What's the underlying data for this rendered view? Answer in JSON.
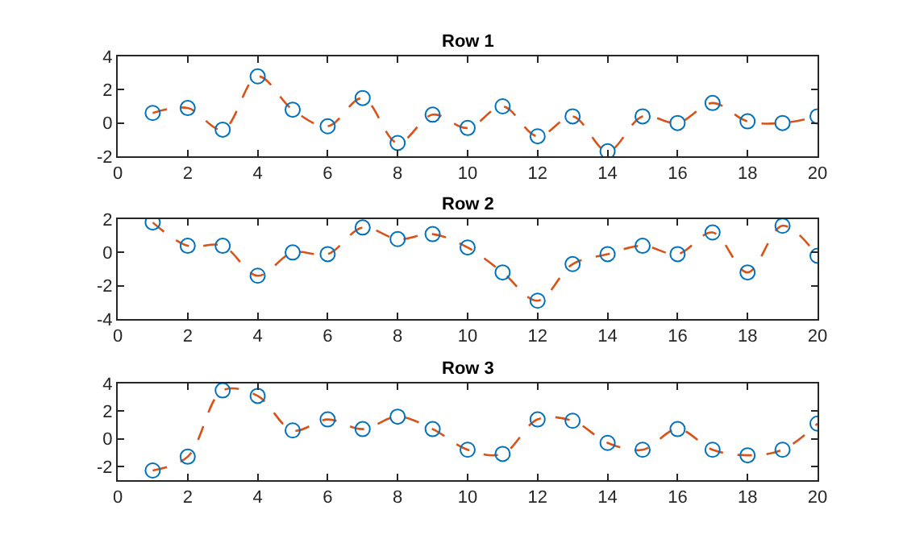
{
  "chart_data": [
    {
      "type": "scatter",
      "title": "Row 1",
      "x": [
        1,
        2,
        3,
        4,
        5,
        6,
        7,
        8,
        9,
        10,
        11,
        12,
        13,
        14,
        15,
        16,
        17,
        18,
        19,
        20
      ],
      "xlim": [
        0,
        20
      ],
      "xticks": [
        0,
        2,
        4,
        6,
        8,
        10,
        12,
        14,
        16,
        18,
        20
      ],
      "ylim": [
        -2,
        4
      ],
      "yticks": [
        -2,
        0,
        2,
        4
      ],
      "series": [
        {
          "type": "line",
          "color": "#d95319",
          "line_style": "dashed",
          "marker": "none",
          "values": [
            0.6,
            0.9,
            -0.4,
            2.8,
            0.8,
            -0.2,
            1.5,
            -1.2,
            0.5,
            -0.3,
            1.0,
            -0.8,
            0.4,
            -1.7,
            0.4,
            0.0,
            1.2,
            0.1,
            0.0,
            0.4
          ]
        },
        {
          "color": "#0072bd",
          "marker": "circle",
          "values": [
            0.6,
            0.9,
            -0.4,
            2.8,
            0.8,
            -0.2,
            1.5,
            -1.2,
            0.5,
            -0.3,
            1.0,
            -0.8,
            0.4,
            -1.7,
            0.4,
            0.0,
            1.2,
            0.1,
            0.0,
            0.4
          ]
        }
      ]
    },
    {
      "type": "scatter",
      "title": "Row 2",
      "x": [
        1,
        2,
        3,
        4,
        5,
        6,
        7,
        8,
        9,
        10,
        11,
        12,
        13,
        14,
        15,
        16,
        17,
        18,
        19,
        20
      ],
      "xlim": [
        0,
        20
      ],
      "xticks": [
        0,
        2,
        4,
        6,
        8,
        10,
        12,
        14,
        16,
        18,
        20
      ],
      "ylim": [
        -4,
        2
      ],
      "yticks": [
        -4,
        -2,
        0,
        2
      ],
      "series": [
        {
          "type": "line",
          "color": "#d95319",
          "line_style": "dashed",
          "marker": "none",
          "values": [
            1.8,
            0.4,
            0.4,
            -1.4,
            0.0,
            -0.1,
            1.5,
            0.8,
            1.1,
            0.3,
            -1.2,
            -2.9,
            -0.7,
            -0.1,
            0.4,
            -0.1,
            1.2,
            -1.2,
            1.6,
            -0.2
          ]
        },
        {
          "color": "#0072bd",
          "marker": "circle",
          "values": [
            1.8,
            0.4,
            0.4,
            -1.4,
            0.0,
            -0.1,
            1.5,
            0.8,
            1.1,
            0.3,
            -1.2,
            -2.9,
            -0.7,
            -0.1,
            0.4,
            -0.1,
            1.2,
            -1.2,
            1.6,
            -0.2
          ]
        }
      ]
    },
    {
      "type": "scatter",
      "title": "Row 3",
      "x": [
        1,
        2,
        3,
        4,
        5,
        6,
        7,
        8,
        9,
        10,
        11,
        12,
        13,
        14,
        15,
        16,
        17,
        18,
        19,
        20
      ],
      "xlim": [
        0,
        20
      ],
      "xticks": [
        0,
        2,
        4,
        6,
        8,
        10,
        12,
        14,
        16,
        18,
        20
      ],
      "ylim": [
        -3,
        4
      ],
      "yticks": [
        -2,
        0,
        2,
        4
      ],
      "series": [
        {
          "type": "line",
          "color": "#d95319",
          "line_style": "dashed",
          "marker": "none",
          "values": [
            -2.3,
            -1.3,
            3.5,
            3.1,
            0.6,
            1.4,
            0.7,
            1.6,
            0.7,
            -0.8,
            -1.1,
            1.4,
            1.3,
            -0.3,
            -0.8,
            0.7,
            -0.8,
            -1.2,
            -0.8,
            1.1
          ]
        },
        {
          "color": "#0072bd",
          "marker": "circle",
          "values": [
            -2.3,
            -1.3,
            3.5,
            3.1,
            0.6,
            1.4,
            0.7,
            1.6,
            0.7,
            -0.8,
            -1.1,
            1.4,
            1.3,
            -0.3,
            -0.8,
            0.7,
            -0.8,
            -1.2,
            -0.8,
            1.1
          ]
        }
      ]
    }
  ]
}
